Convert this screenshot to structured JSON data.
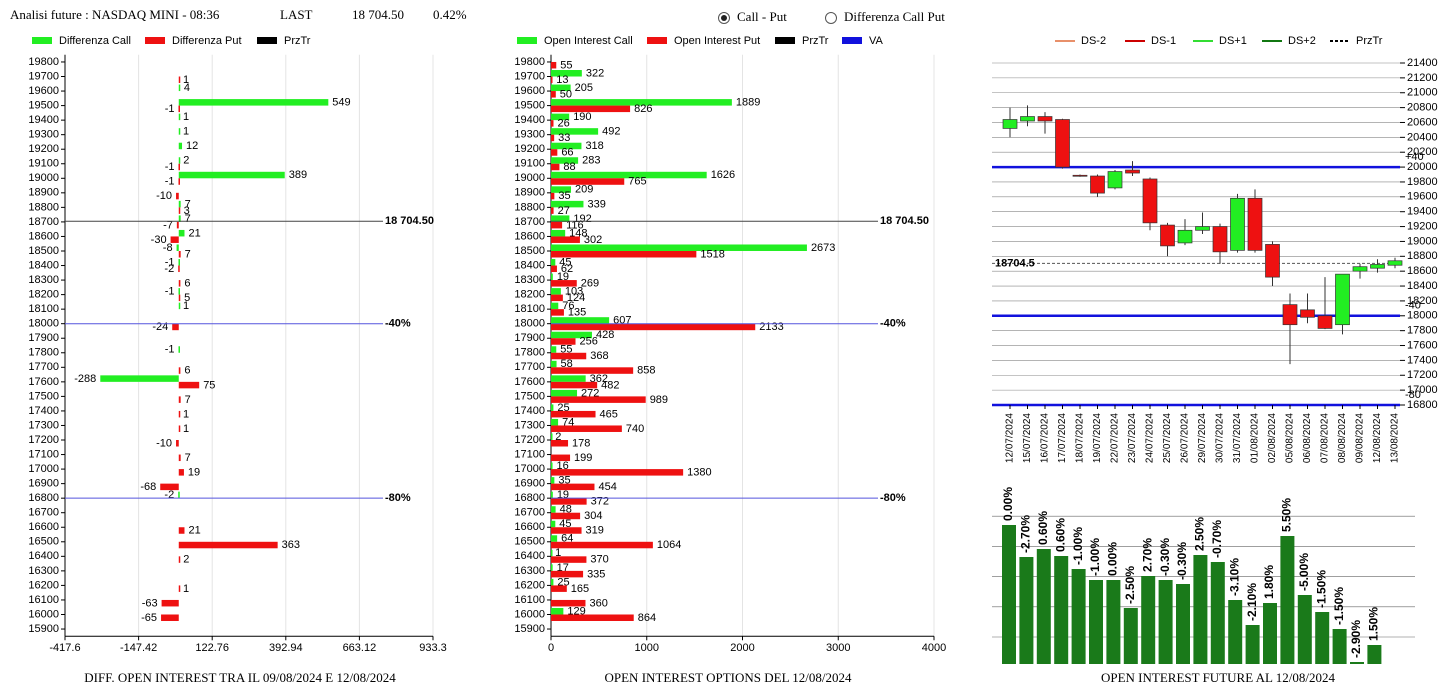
{
  "header": {
    "title": "Analisi future : NASDAQ MINI - 08:36",
    "last_label": "LAST",
    "last": "18 704.50",
    "change": "0.42%",
    "options": [
      {
        "label": "Call - Put",
        "selected": true
      },
      {
        "label": "Differenza Call Put",
        "selected": false
      }
    ]
  },
  "chart_data": [
    {
      "type": "hbar",
      "caption": "DIFF. OPEN INTEREST TRA IL 09/08/2024 E 12/08/2024",
      "categories": [
        19800,
        19700,
        19600,
        19500,
        19400,
        19300,
        19200,
        19100,
        19000,
        18900,
        18800,
        18700,
        18600,
        18500,
        18400,
        18300,
        18200,
        18100,
        18000,
        17900,
        17800,
        17700,
        17600,
        17500,
        17400,
        17300,
        17200,
        17100,
        17000,
        16900,
        16800,
        16700,
        16600,
        16500,
        16400,
        16300,
        16200,
        16100,
        16000,
        15900
      ],
      "series": [
        {
          "name": "Differenza Call",
          "color": "#22ee22",
          "values": [
            null,
            null,
            4,
            549,
            1,
            1,
            12,
            2,
            389,
            null,
            7,
            7,
            21,
            -8,
            -1,
            null,
            -1,
            1,
            null,
            null,
            -1,
            null,
            -288,
            null,
            null,
            null,
            null,
            null,
            null,
            null,
            -2,
            null,
            null,
            null,
            null,
            null,
            null,
            null,
            null,
            null
          ]
        },
        {
          "name": "Differenza Put",
          "color": "#ee1111",
          "values": [
            null,
            1,
            null,
            -1,
            null,
            null,
            null,
            -1,
            -1,
            -10,
            3,
            -7,
            -30,
            7,
            -2,
            6,
            5,
            null,
            -24,
            null,
            null,
            6,
            75,
            7,
            1,
            1,
            -10,
            7,
            19,
            -68,
            null,
            null,
            21,
            363,
            2,
            null,
            1,
            -63,
            -65,
            null
          ]
        }
      ],
      "extra_legend": [
        {
          "name": "PrzTr",
          "color": "#000000"
        }
      ],
      "reference_lines": [
        {
          "value": 18704.5,
          "label": "18 704.50",
          "color": "#444444"
        },
        {
          "value": 18000,
          "label": "-40%",
          "color": "#5555dd"
        },
        {
          "value": 16800,
          "label": "-80%",
          "color": "#5555dd"
        }
      ],
      "xlim": [
        -417.6,
        933.3
      ],
      "xticks": [
        -417.6,
        -147.42,
        122.76,
        392.94,
        663.12,
        933.3
      ],
      "ylim": [
        15850,
        19850
      ],
      "grid": true
    },
    {
      "type": "hbar",
      "caption": "OPEN INTEREST OPTIONS DEL 12/08/2024",
      "categories": [
        19800,
        19700,
        19600,
        19500,
        19400,
        19300,
        19200,
        19100,
        19000,
        18900,
        18800,
        18700,
        18600,
        18500,
        18400,
        18300,
        18200,
        18100,
        18000,
        17900,
        17800,
        17700,
        17600,
        17500,
        17400,
        17300,
        17200,
        17100,
        17000,
        16900,
        16800,
        16700,
        16600,
        16500,
        16400,
        16300,
        16200,
        16100,
        16000,
        15900
      ],
      "series": [
        {
          "name": "Open Interest Call",
          "color": "#22ee22",
          "values": [
            null,
            322,
            205,
            1889,
            190,
            492,
            318,
            283,
            1626,
            209,
            339,
            192,
            148,
            2673,
            45,
            19,
            103,
            76,
            607,
            428,
            55,
            58,
            362,
            272,
            25,
            74,
            2,
            null,
            16,
            35,
            19,
            48,
            45,
            64,
            1,
            17,
            25,
            null,
            129,
            null
          ]
        },
        {
          "name": "Open Interest Put",
          "color": "#ee1111",
          "values": [
            55,
            13,
            50,
            826,
            26,
            33,
            66,
            88,
            765,
            35,
            27,
            116,
            302,
            1518,
            62,
            269,
            124,
            135,
            2133,
            256,
            368,
            858,
            482,
            989,
            465,
            740,
            178,
            199,
            1380,
            454,
            372,
            304,
            319,
            1064,
            370,
            335,
            165,
            360,
            864,
            null
          ]
        }
      ],
      "extra_legend": [
        {
          "name": "PrzTr",
          "color": "#000000"
        },
        {
          "name": "VA",
          "color": "#1111dd"
        }
      ],
      "reference_lines": [
        {
          "value": 18704.5,
          "label": "18 704.50",
          "color": "#444444"
        },
        {
          "value": 18000,
          "label": "-40%",
          "color": "#5555dd"
        },
        {
          "value": 16800,
          "label": "-80%",
          "color": "#5555dd"
        }
      ],
      "xlim": [
        0,
        4000
      ],
      "xticks": [
        0,
        1000,
        2000,
        3000,
        4000
      ],
      "ylim": [
        15850,
        19850
      ],
      "grid": true
    },
    {
      "type": "candlestick",
      "x": [
        "12/07/2024",
        "15/07/2024",
        "16/07/2024",
        "17/07/2024",
        "18/07/2024",
        "19/07/2024",
        "22/07/2024",
        "23/07/2024",
        "24/07/2024",
        "25/07/2024",
        "26/07/2024",
        "29/07/2024",
        "30/07/2024",
        "31/07/2024",
        "01/08/2024",
        "02/08/2024",
        "05/08/2024",
        "06/08/2024",
        "07/08/2024",
        "08/08/2024",
        "09/08/2024",
        "12/08/2024",
        "13/08/2024"
      ],
      "open": [
        20520,
        20620,
        20680,
        20640,
        19890,
        19880,
        19720,
        19960,
        19840,
        19220,
        18980,
        19150,
        19200,
        18880,
        19580,
        18960,
        18150,
        18080,
        18000,
        17880,
        18600,
        18640,
        18680
      ],
      "high": [
        20800,
        20830,
        20740,
        20650,
        19900,
        19900,
        19960,
        20080,
        19860,
        19250,
        19300,
        19390,
        19240,
        19640,
        19700,
        19000,
        18300,
        18300,
        18520,
        18560,
        18700,
        18760,
        18780
      ],
      "low": [
        20400,
        20550,
        20450,
        19980,
        19870,
        19600,
        19700,
        19880,
        19150,
        18800,
        18950,
        19100,
        18700,
        18850,
        18850,
        18400,
        17350,
        17900,
        17820,
        17750,
        18500,
        18580,
        18640
      ],
      "close": [
        20640,
        20680,
        20620,
        20000,
        19880,
        19650,
        19940,
        19920,
        19250,
        18940,
        19150,
        19200,
        18860,
        19580,
        18880,
        18520,
        17880,
        17980,
        17830,
        18560,
        18660,
        18690,
        18740
      ],
      "up_color": "#22ee22",
      "down_color": "#ee1111",
      "legend": [
        {
          "name": "DS-2",
          "color": "#e8906a",
          "dash": false
        },
        {
          "name": "DS-1",
          "color": "#cc0000",
          "dash": false
        },
        {
          "name": "DS+1",
          "color": "#33dd33",
          "dash": false
        },
        {
          "name": "DS+2",
          "color": "#117711",
          "dash": false
        },
        {
          "name": "PrzTr",
          "color": "#000000",
          "dash": true
        }
      ],
      "reference_lines": [
        {
          "value": 18704.5,
          "label": "18704.5",
          "color": "#555555",
          "dash": true
        },
        {
          "value": 20000,
          "label": "+40",
          "color": "#1111dd",
          "dash": false
        },
        {
          "value": 18000,
          "label": "-40",
          "color": "#1111dd",
          "dash": false
        },
        {
          "value": 16800,
          "label": "-80",
          "color": "#1111dd",
          "dash": false
        }
      ],
      "ylim": [
        16800,
        21400
      ],
      "yticks": [
        16800,
        17000,
        17200,
        17400,
        17600,
        17800,
        18000,
        18200,
        18400,
        18600,
        18800,
        19000,
        19200,
        19400,
        19600,
        19800,
        20000,
        20200,
        20400,
        20600,
        20800,
        21000,
        21200,
        21400
      ],
      "grid": true
    },
    {
      "type": "bar",
      "caption": "OPEN INTEREST FUTURE AL 12/08/2024",
      "color": "#1a7a1a",
      "values": [
        139,
        107,
        115,
        108,
        95,
        84,
        84,
        56,
        88,
        84,
        80,
        109,
        102,
        64,
        39,
        61,
        128,
        69,
        52,
        35,
        2,
        19
      ],
      "change_labels": [
        "0.00%",
        "-2.70%",
        "0.60%",
        "0.60%",
        "-1.00%",
        "-1.00%",
        "0.00%",
        "-2.50%",
        "2.70%",
        "-0.30%",
        "-0.30%",
        "2.50%",
        "-0.70%",
        "-3.10%",
        "-2.10%",
        "1.80%",
        "5.50%",
        "-5.00%",
        "-1.50%",
        "-1.50%",
        "-2.90%",
        "1.50%"
      ],
      "ylim": [
        0,
        150
      ],
      "grid": true
    }
  ]
}
